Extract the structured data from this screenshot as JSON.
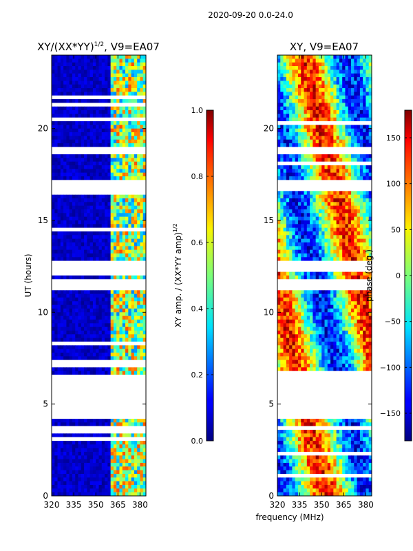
{
  "suptitle": "2020-09-20 0.0-24.0",
  "chart_data": [
    {
      "type": "heatmap",
      "title": "XY/(XX*YY)^1/2, V9=EA07",
      "title_base": "XY/(XX*YY)",
      "title_exp": "1/2",
      "title_tail": ", V9=EA07",
      "xlabel": "",
      "ylabel": "UT (hours)",
      "xlim": [
        320,
        384
      ],
      "ylim": [
        0,
        24
      ],
      "xticks": [
        320,
        335,
        350,
        365,
        380
      ],
      "yticks": [
        0,
        5,
        10,
        15,
        20
      ],
      "colorbar": {
        "label": "XY amp. / (XX*YY amp)^1/2",
        "label_base": "XY amp. / (XX*YY amp)",
        "label_exp": "1/2",
        "range": [
          0.0,
          1.0
        ],
        "ticks": [
          0.0,
          0.2,
          0.4,
          0.6,
          0.8,
          1.0
        ],
        "tick_labels": [
          "0.0",
          "0.2",
          "0.4",
          "0.6",
          "0.8",
          "1.0"
        ],
        "colormap": "jet"
      },
      "gap_hours": [
        [
          4.2,
          6.5
        ],
        [
          12.2,
          12.8
        ],
        [
          11.3,
          11.7
        ],
        [
          16.6,
          17.1
        ],
        [
          18.6,
          18.9
        ]
      ],
      "description_values": {
        "background_amplitude": 0.05,
        "high_band_mhz": [
          360,
          380
        ],
        "high_band_amplitude": 0.5
      }
    },
    {
      "type": "heatmap",
      "title": "XY, V9=EA07",
      "xlabel": "frequency (MHz)",
      "ylabel": "",
      "xlim": [
        320,
        384
      ],
      "ylim": [
        0,
        24
      ],
      "xticks": [
        320,
        335,
        350,
        365,
        380
      ],
      "yticks": [
        0,
        5,
        10,
        15,
        20
      ],
      "colorbar": {
        "label": "phase (deg.)",
        "range": [
          -180,
          180
        ],
        "ticks": [
          -150,
          -100,
          -50,
          0,
          50,
          100,
          150
        ],
        "tick_labels": [
          "−150",
          "−100",
          "−50",
          "0",
          "50",
          "100",
          "150"
        ],
        "colormap": "jet"
      },
      "gap_hours": [
        [
          4.2,
          6.5
        ],
        [
          12.2,
          12.8
        ],
        [
          11.3,
          11.7
        ],
        [
          16.6,
          17.1
        ],
        [
          18.6,
          18.9
        ]
      ]
    }
  ],
  "colors": {
    "jet_low": "#00007f",
    "jet_mid": "#7fff7f",
    "jet_high": "#7f0000",
    "gap": "#ffffff"
  }
}
